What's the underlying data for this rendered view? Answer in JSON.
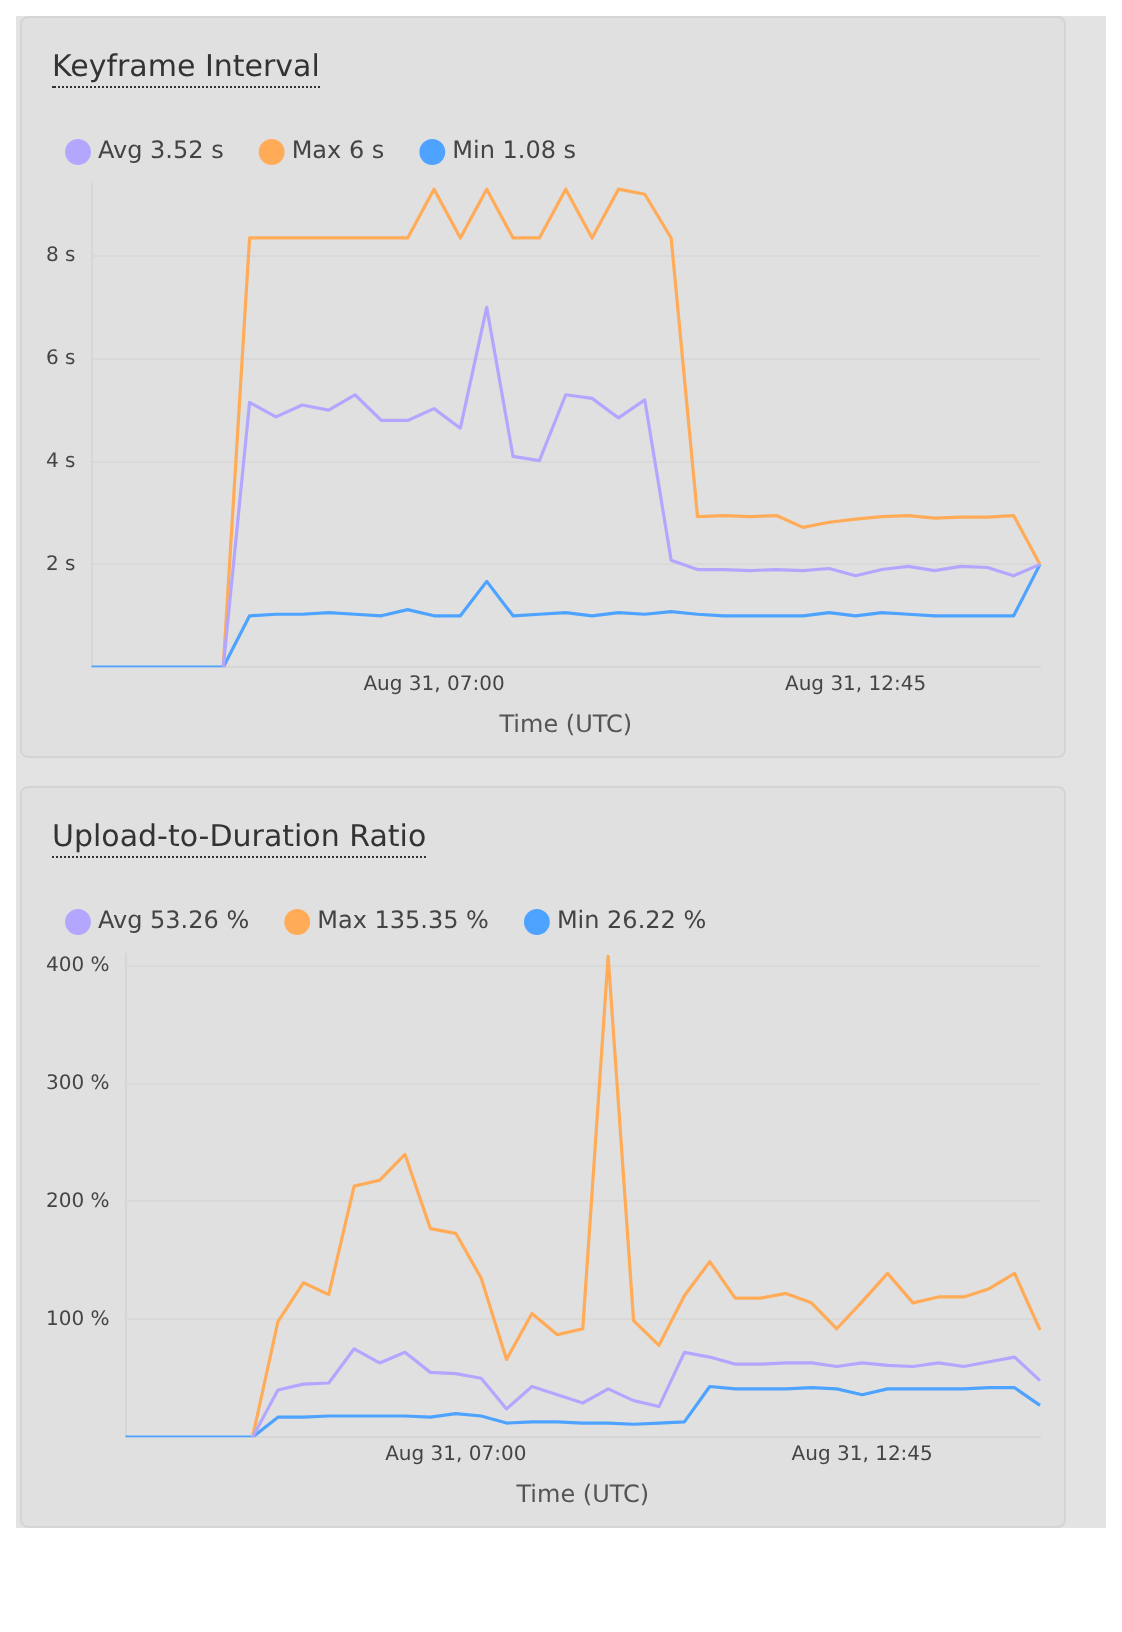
{
  "chart_data": [
    {
      "type": "line",
      "title": "Keyframe Interval",
      "xlabel": "Time (UTC)",
      "legend": "top left",
      "grid": "y",
      "marker": "none",
      "categories": [
        null,
        null,
        null,
        null,
        null,
        null,
        null,
        null,
        null,
        null,
        null,
        null,
        null,
        "Aug 31, 07:00",
        null,
        null,
        null,
        null,
        null,
        null,
        null,
        null,
        null,
        null,
        null,
        null,
        null,
        null,
        null,
        "Aug 31, 12:45",
        null,
        null,
        null,
        null,
        null,
        null,
        null
      ],
      "ylim": [
        0,
        9.4
      ],
      "yticks": [
        {
          "value": 2,
          "label": "2 s"
        },
        {
          "value": 4,
          "label": "4 s"
        },
        {
          "value": 6,
          "label": "6 s"
        },
        {
          "value": 8,
          "label": "8 s"
        }
      ],
      "series": [
        {
          "name": "Avg 3.52 s",
          "color": "#b3a6ff",
          "values": [
            null,
            null,
            null,
            null,
            null,
            0,
            5.15,
            4.87,
            5.1,
            5.0,
            5.3,
            4.8,
            4.8,
            5.03,
            4.65,
            7.0,
            4.1,
            4.02,
            5.3,
            5.23,
            4.85,
            5.2,
            2.08,
            1.9,
            1.9,
            1.88,
            1.9,
            1.88,
            1.92,
            1.78,
            1.9,
            1.96,
            1.88,
            1.96,
            1.94,
            1.78,
            2.0
          ]
        },
        {
          "name": "Max 6 s",
          "color": "#ffab57",
          "values": [
            null,
            null,
            null,
            null,
            null,
            0,
            8.35,
            8.35,
            8.35,
            8.35,
            8.35,
            8.35,
            8.35,
            9.3,
            8.35,
            9.3,
            8.35,
            8.35,
            9.3,
            8.35,
            9.3,
            9.2,
            8.35,
            2.93,
            2.95,
            2.93,
            2.95,
            2.72,
            2.82,
            2.88,
            2.93,
            2.95,
            2.9,
            2.92,
            2.92,
            2.95,
            2.0
          ]
        },
        {
          "name": "Min 1.08 s",
          "color": "#4da3ff",
          "values": [
            0,
            0,
            0,
            0,
            0,
            0,
            1.0,
            1.03,
            1.03,
            1.06,
            1.03,
            1.0,
            1.12,
            1.0,
            1.0,
            1.67,
            1.0,
            1.03,
            1.06,
            1.0,
            1.06,
            1.03,
            1.08,
            1.03,
            1.0,
            1.0,
            1.0,
            1.0,
            1.06,
            1.0,
            1.06,
            1.03,
            1.0,
            1.0,
            1.0,
            1.0,
            2.0
          ]
        }
      ]
    },
    {
      "type": "line",
      "title": "Upload-to-Duration Ratio",
      "xlabel": "Time (UTC)",
      "legend": "top left",
      "grid": "y",
      "marker": "none",
      "categories": [
        null,
        null,
        null,
        null,
        null,
        null,
        null,
        null,
        null,
        null,
        null,
        null,
        null,
        "Aug 31, 07:00",
        null,
        null,
        null,
        null,
        null,
        null,
        null,
        null,
        null,
        null,
        null,
        null,
        null,
        null,
        null,
        "Aug 31, 12:45",
        null,
        null,
        null,
        null,
        null,
        null,
        null
      ],
      "ylim": [
        0,
        410
      ],
      "yticks": [
        {
          "value": 100,
          "label": "100 %"
        },
        {
          "value": 200,
          "label": "200 %"
        },
        {
          "value": 300,
          "label": "300 %"
        },
        {
          "value": 400,
          "label": "400 %"
        }
      ],
      "series": [
        {
          "name": "Avg 53.26 %",
          "color": "#b3a6ff",
          "values": [
            null,
            null,
            null,
            null,
            null,
            0,
            40,
            45,
            46,
            75,
            63,
            72,
            55,
            54,
            50,
            24,
            43,
            36,
            29,
            41,
            31,
            26,
            72,
            68,
            62,
            62,
            63,
            63,
            60,
            63,
            61,
            60,
            63,
            60,
            64,
            68,
            48
          ]
        },
        {
          "name": "Max 135.35 %",
          "color": "#ffab57",
          "values": [
            null,
            null,
            null,
            null,
            null,
            0,
            98,
            131,
            121,
            213,
            218,
            240,
            177,
            173,
            135,
            66,
            105,
            87,
            92,
            408,
            99,
            78,
            120,
            149,
            118,
            118,
            122,
            114,
            92,
            115,
            139,
            114,
            119,
            119,
            126,
            139,
            91
          ]
        },
        {
          "name": "Min 26.22 %",
          "color": "#4da3ff",
          "values": [
            0,
            0,
            0,
            0,
            0,
            0,
            17,
            17,
            18,
            18,
            18,
            18,
            17,
            20,
            18,
            12,
            13,
            13,
            12,
            12,
            11,
            12,
            13,
            43,
            41,
            41,
            41,
            42,
            41,
            36,
            41,
            41,
            41,
            41,
            42,
            42,
            27
          ]
        }
      ]
    }
  ]
}
